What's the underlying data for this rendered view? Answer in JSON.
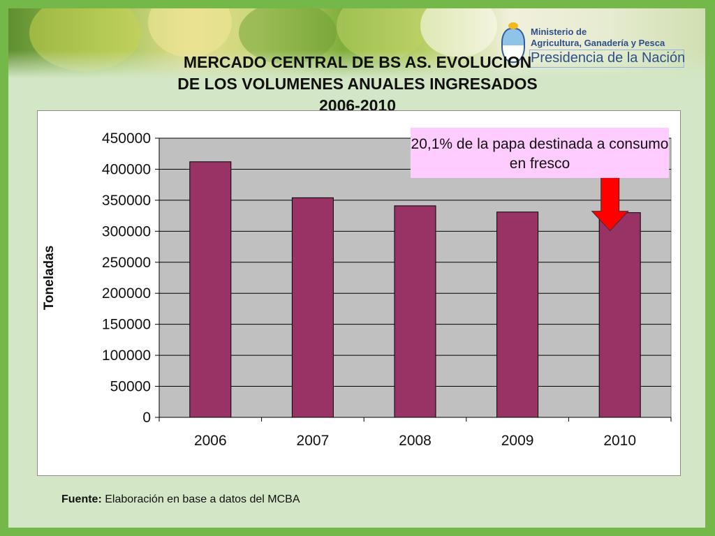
{
  "slide": {
    "title_lines": [
      "MERCADO CENTRAL DE BS AS. EVOLUCION",
      "DE LOS VOLUMENES ANUALES INGRESADOS",
      "2006-2010"
    ],
    "logo": {
      "line1": "Ministerio de",
      "line2": "Agricultura, Ganadería y Pesca",
      "line3": "Presidencia de la Nación"
    },
    "callout": "20,1% de la papa destinada a consumo en fresco",
    "source_label": "Fuente:",
    "source_text": " Elaboración en base a datos del MCBA",
    "colors": {
      "frame": "#74b84a",
      "background": "#d3e6c5",
      "bar": "#993366",
      "plot_bg": "#c0c0c0",
      "arrow": "#ff0000",
      "callout_bg": "#ffccff"
    }
  },
  "chart_data": {
    "type": "bar",
    "categories": [
      "2006",
      "2007",
      "2008",
      "2009",
      "2010"
    ],
    "values": [
      412000,
      354000,
      341000,
      331000,
      330000
    ],
    "title": "MERCADO CENTRAL DE BS AS. EVOLUCION DE LOS VOLUMENES ANUALES INGRESADOS 2006-2010",
    "xlabel": "",
    "ylabel": "Toneladas",
    "ylim": [
      0,
      450000
    ],
    "yticks": [
      0,
      50000,
      100000,
      150000,
      200000,
      250000,
      300000,
      350000,
      400000,
      450000
    ],
    "grid": true,
    "legend": "none",
    "annotation": {
      "text": "20,1% de la papa destinada a consumo en fresco",
      "target_category": "2010",
      "marker": "red-down-arrow"
    }
  }
}
